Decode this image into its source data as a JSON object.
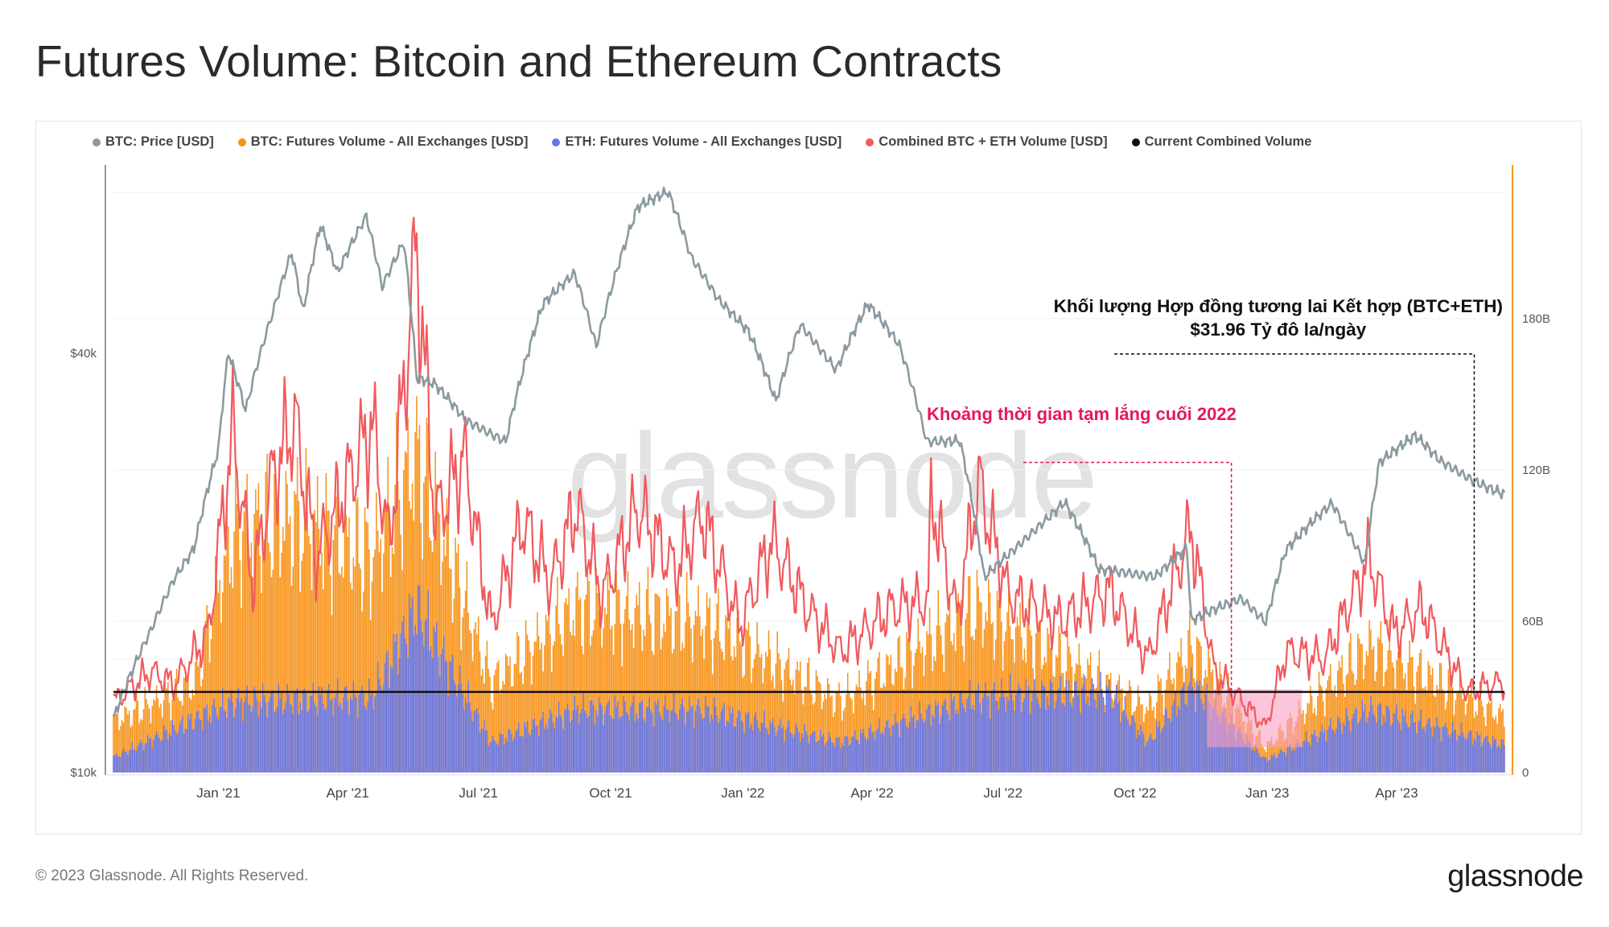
{
  "title": "Futures Volume: Bitcoin and Ethereum Contracts",
  "footer": {
    "copyright": "© 2023 Glassnode. All Rights Reserved.",
    "logo": "glassnode"
  },
  "watermark": "glassnode",
  "legend": [
    {
      "label": "BTC: Price [USD]",
      "color": "#8a9aa0"
    },
    {
      "label": "BTC: Futures Volume - All Exchanges [USD]",
      "color": "#f7931a"
    },
    {
      "label": "ETH: Futures Volume - All Exchanges [USD]",
      "color": "#6877e4"
    },
    {
      "label": "Combined BTC + ETH Volume [USD]",
      "color": "#f05a5e"
    },
    {
      "label": "Current Combined Volume",
      "color": "#111111"
    }
  ],
  "annotations": {
    "lull": "Khoảng thời gian tạm lắng cuối 2022",
    "combined_line1": "Khối lượng Hợp đồng tương lai Kết hợp (BTC+ETH)",
    "combined_line2": "$31.96 Tỷ đô la/ngày"
  },
  "chart_data": {
    "type": "line+bar",
    "title": "Futures Volume: Bitcoin and Ethereum Contracts",
    "x_ticks": [
      "Jan '21",
      "Apr '21",
      "Jul '21",
      "Oct '21",
      "Jan '22",
      "Apr '22",
      "Jul '22",
      "Oct '22",
      "Jan '23",
      "Apr '23"
    ],
    "x_range": [
      "2020-10-20",
      "2023-06-15"
    ],
    "left_axis": {
      "scale": "log",
      "ticks": [
        "$10k",
        "$40k"
      ],
      "tick_values": [
        10000,
        40000
      ],
      "range": [
        10000,
        74000
      ]
    },
    "right_axis": {
      "ticks": [
        "0",
        "60B",
        "120B",
        "180B"
      ],
      "tick_values": [
        0,
        60,
        120,
        180
      ],
      "range": [
        0,
        240
      ],
      "unit": "B USD"
    },
    "current_combined_volume_B": 31.96,
    "lull_period": [
      "2022-11-20",
      "2023-01-25"
    ],
    "series": [
      {
        "name": "BTC: Price [USD]",
        "axis": "left",
        "points": [
          [
            "2020-10-20",
            11900
          ],
          [
            "2020-11-01",
            13800
          ],
          [
            "2020-11-15",
            16000
          ],
          [
            "2020-12-01",
            19000
          ],
          [
            "2020-12-15",
            21000
          ],
          [
            "2021-01-01",
            29000
          ],
          [
            "2021-01-08",
            40000
          ],
          [
            "2021-01-20",
            33000
          ],
          [
            "2021-02-08",
            46000
          ],
          [
            "2021-02-21",
            56000
          ],
          [
            "2021-03-01",
            46000
          ],
          [
            "2021-03-13",
            61000
          ],
          [
            "2021-03-25",
            52000
          ],
          [
            "2021-04-14",
            63000
          ],
          [
            "2021-04-25",
            50000
          ],
          [
            "2021-05-10",
            58000
          ],
          [
            "2021-05-19",
            37000
          ],
          [
            "2021-06-01",
            36000
          ],
          [
            "2021-06-22",
            32000
          ],
          [
            "2021-07-20",
            30000
          ],
          [
            "2021-08-15",
            47000
          ],
          [
            "2021-09-06",
            52000
          ],
          [
            "2021-09-21",
            41000
          ],
          [
            "2021-10-20",
            65000
          ],
          [
            "2021-11-10",
            68000
          ],
          [
            "2021-11-26",
            55000
          ],
          [
            "2021-12-15",
            48000
          ],
          [
            "2022-01-05",
            43000
          ],
          [
            "2022-01-24",
            34000
          ],
          [
            "2022-02-10",
            44000
          ],
          [
            "2022-03-07",
            38000
          ],
          [
            "2022-03-29",
            47000
          ],
          [
            "2022-04-20",
            41000
          ],
          [
            "2022-05-09",
            30000
          ],
          [
            "2022-06-01",
            30000
          ],
          [
            "2022-06-18",
            19000
          ],
          [
            "2022-07-10",
            21000
          ],
          [
            "2022-08-13",
            24500
          ],
          [
            "2022-09-06",
            19500
          ],
          [
            "2022-10-15",
            19200
          ],
          [
            "2022-11-06",
            21000
          ],
          [
            "2022-11-09",
            16500
          ],
          [
            "2022-12-14",
            17800
          ],
          [
            "2022-12-31",
            16500
          ],
          [
            "2023-01-14",
            20900
          ],
          [
            "2023-02-15",
            24300
          ],
          [
            "2023-03-10",
            20000
          ],
          [
            "2023-03-20",
            28000
          ],
          [
            "2023-04-14",
            30400
          ],
          [
            "2023-05-01",
            28000
          ],
          [
            "2023-05-25",
            26300
          ],
          [
            "2023-06-15",
            25100
          ]
        ]
      },
      {
        "name": "Combined BTC + ETH Volume [USD]",
        "axis": "right",
        "points": [
          [
            "2020-10-20",
            28
          ],
          [
            "2020-11-15",
            40
          ],
          [
            "2020-12-01",
            35
          ],
          [
            "2020-12-25",
            55
          ],
          [
            "2021-01-11",
            135
          ],
          [
            "2021-01-25",
            75
          ],
          [
            "2021-02-08",
            118
          ],
          [
            "2021-02-23",
            140
          ],
          [
            "2021-03-10",
            85
          ],
          [
            "2021-04-18",
            138
          ],
          [
            "2021-04-30",
            90
          ],
          [
            "2021-05-19",
            208
          ],
          [
            "2021-06-01",
            100
          ],
          [
            "2021-06-21",
            125
          ],
          [
            "2021-07-10",
            58
          ],
          [
            "2021-08-01",
            100
          ],
          [
            "2021-08-20",
            75
          ],
          [
            "2021-09-07",
            105
          ],
          [
            "2021-09-25",
            70
          ],
          [
            "2021-10-20",
            105
          ],
          [
            "2021-11-15",
            80
          ],
          [
            "2021-12-04",
            102
          ],
          [
            "2021-12-30",
            58
          ],
          [
            "2022-01-21",
            92
          ],
          [
            "2022-02-15",
            65
          ],
          [
            "2022-03-10",
            48
          ],
          [
            "2022-04-15",
            65
          ],
          [
            "2022-05-10",
            68
          ],
          [
            "2022-05-12",
            110
          ],
          [
            "2022-05-30",
            62
          ],
          [
            "2022-06-14",
            115
          ],
          [
            "2022-07-05",
            70
          ],
          [
            "2022-08-10",
            60
          ],
          [
            "2022-09-13",
            72
          ],
          [
            "2022-10-10",
            45
          ],
          [
            "2022-11-09",
            97
          ],
          [
            "2022-11-25",
            40
          ],
          [
            "2022-12-15",
            28
          ],
          [
            "2022-12-31",
            18
          ],
          [
            "2023-01-14",
            48
          ],
          [
            "2023-02-10",
            45
          ],
          [
            "2023-03-13",
            85
          ],
          [
            "2023-03-30",
            55
          ],
          [
            "2023-04-19",
            65
          ],
          [
            "2023-05-20",
            32
          ],
          [
            "2023-06-15",
            36
          ]
        ]
      },
      {
        "name": "BTC: Futures Volume - All Exchanges [USD]",
        "axis": "right",
        "points": [
          [
            "2020-10-20",
            20
          ],
          [
            "2020-12-15",
            35
          ],
          [
            "2021-01-11",
            95
          ],
          [
            "2021-02-23",
            100
          ],
          [
            "2021-04-18",
            85
          ],
          [
            "2021-05-19",
            125
          ],
          [
            "2021-07-10",
            35
          ],
          [
            "2021-09-07",
            65
          ],
          [
            "2021-12-04",
            60
          ],
          [
            "2022-03-10",
            28
          ],
          [
            "2022-06-14",
            65
          ],
          [
            "2022-10-10",
            25
          ],
          [
            "2022-11-09",
            50
          ],
          [
            "2022-12-31",
            10
          ],
          [
            "2023-03-13",
            50
          ],
          [
            "2023-06-15",
            22
          ]
        ]
      },
      {
        "name": "ETH: Futures Volume - All Exchanges [USD]",
        "axis": "right",
        "points": [
          [
            "2020-10-20",
            6
          ],
          [
            "2021-01-11",
            28
          ],
          [
            "2021-04-18",
            30
          ],
          [
            "2021-05-19",
            65
          ],
          [
            "2021-07-10",
            12
          ],
          [
            "2021-09-07",
            25
          ],
          [
            "2021-12-04",
            25
          ],
          [
            "2022-03-10",
            12
          ],
          [
            "2022-06-14",
            30
          ],
          [
            "2022-09-13",
            32
          ],
          [
            "2022-10-10",
            12
          ],
          [
            "2022-11-09",
            35
          ],
          [
            "2022-12-31",
            5
          ],
          [
            "2023-03-13",
            25
          ],
          [
            "2023-06-15",
            11
          ]
        ]
      }
    ]
  }
}
